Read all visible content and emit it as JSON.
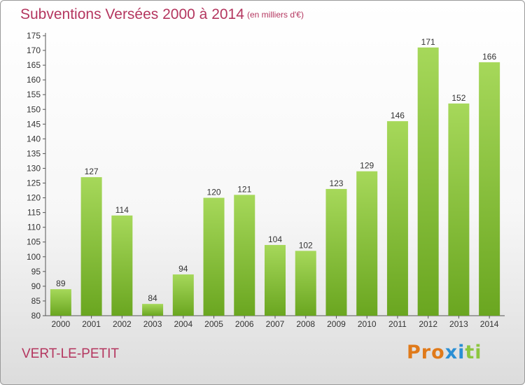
{
  "title": "Subventions Versées 2000 à 2014",
  "units": "(en milliers d'€)",
  "commune": "VERT-LE-PETIT",
  "logo": [
    "P",
    "r",
    "o",
    "x",
    "i",
    "t",
    "i"
  ],
  "colors": {
    "title": "#b4365f",
    "bar_light": "#a6d85a",
    "bar_dark": "#6aa620",
    "logo": [
      "#e07a1a",
      "#e07a1a",
      "#e07a1a",
      "#2a8fd4",
      "#2a8fd4",
      "#8cc63f",
      "#8cc63f"
    ]
  },
  "chart_data": {
    "type": "bar",
    "categories": [
      "2000",
      "2001",
      "2002",
      "2003",
      "2004",
      "2005",
      "2006",
      "2007",
      "2008",
      "2009",
      "2010",
      "2011",
      "2012",
      "2013",
      "2014"
    ],
    "values": [
      89,
      127,
      114,
      84,
      94,
      120,
      121,
      104,
      102,
      123,
      129,
      146,
      171,
      152,
      166
    ],
    "ylim": [
      80,
      175
    ],
    "ytick_step": 5,
    "grid": false,
    "title": "Subventions Versées 2000 à 2014",
    "xlabel": "",
    "ylabel": ""
  }
}
